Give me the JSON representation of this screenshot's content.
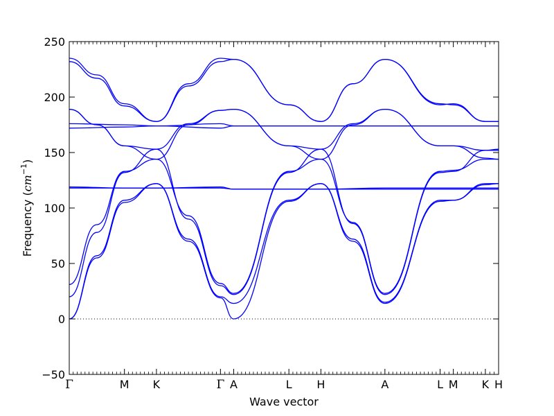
{
  "chart_data": {
    "type": "line",
    "title": "",
    "xlabel": "Wave vector",
    "ylabel": "Frequency",
    "ylabel_unit_text": "cm",
    "ylabel_unit_exp": "−1",
    "ylim": [
      -50,
      250
    ],
    "yticks": [
      -50,
      0,
      50,
      100,
      150,
      200,
      250
    ],
    "grid": false,
    "zero_line": {
      "y": 0,
      "style": "dotted"
    },
    "line_color": "#0000ff",
    "x_segment_lengths": [
      0.5,
      0.29,
      0.58,
      0.12,
      0.5,
      0.29,
      0.58,
      0.5,
      0.12,
      0.29,
      0.12
    ],
    "high_symmetry_points": [
      "Γ",
      "M",
      "K",
      "Γ",
      "A",
      "L",
      "H",
      "A",
      "L",
      "M",
      "K",
      "H"
    ],
    "series": [
      {
        "values": [
          [
            0,
            0
          ],
          [
            0.25,
            55
          ],
          [
            0.5,
            105
          ],
          [
            0.79,
            122
          ],
          [
            1.08,
            70
          ],
          [
            1.37,
            19
          ],
          [
            1.49,
            0
          ],
          [
            1.99,
            106
          ],
          [
            2.28,
            122
          ],
          [
            2.57,
            70
          ],
          [
            2.86,
            14
          ],
          [
            3.36,
            106
          ],
          [
            3.48,
            107
          ],
          [
            3.77,
            121
          ],
          [
            3.89,
            122
          ]
        ]
      },
      {
        "values": [
          [
            0,
            0
          ],
          [
            0.25,
            57
          ],
          [
            0.5,
            107
          ],
          [
            0.79,
            122
          ],
          [
            1.08,
            72
          ],
          [
            1.37,
            20
          ],
          [
            1.49,
            14
          ],
          [
            1.99,
            107
          ],
          [
            2.28,
            122
          ],
          [
            2.57,
            72
          ],
          [
            2.86,
            15
          ],
          [
            3.36,
            107
          ],
          [
            3.48,
            107
          ],
          [
            3.77,
            122
          ],
          [
            3.89,
            122
          ]
        ]
      },
      {
        "values": [
          [
            0,
            20
          ],
          [
            0.25,
            78
          ],
          [
            0.5,
            132
          ],
          [
            0.79,
            153
          ],
          [
            1.08,
            90
          ],
          [
            1.37,
            30
          ],
          [
            1.49,
            22
          ],
          [
            1.99,
            132
          ],
          [
            2.28,
            153
          ],
          [
            2.57,
            86
          ],
          [
            2.86,
            22
          ],
          [
            3.36,
            132
          ],
          [
            3.48,
            133
          ],
          [
            3.77,
            152
          ],
          [
            3.89,
            153
          ]
        ]
      },
      {
        "values": [
          [
            0,
            31
          ],
          [
            0.25,
            85
          ],
          [
            0.5,
            133
          ],
          [
            0.79,
            144
          ],
          [
            1.08,
            93
          ],
          [
            1.37,
            32
          ],
          [
            1.49,
            23
          ],
          [
            1.99,
            133
          ],
          [
            2.28,
            144
          ],
          [
            2.57,
            87
          ],
          [
            2.86,
            23
          ],
          [
            3.36,
            133
          ],
          [
            3.48,
            134
          ],
          [
            3.77,
            144
          ],
          [
            3.89,
            144
          ]
        ]
      },
      {
        "values": [
          [
            0,
            118
          ],
          [
            0.5,
            118
          ],
          [
            0.79,
            118
          ],
          [
            1.37,
            118
          ],
          [
            1.49,
            117
          ],
          [
            1.99,
            117
          ],
          [
            2.28,
            117
          ],
          [
            2.86,
            117
          ],
          [
            3.36,
            117
          ],
          [
            3.48,
            117
          ],
          [
            3.77,
            117
          ],
          [
            3.89,
            117
          ]
        ]
      },
      {
        "values": [
          [
            0,
            119
          ],
          [
            0.5,
            118
          ],
          [
            0.79,
            118
          ],
          [
            1.37,
            119
          ],
          [
            1.49,
            117
          ],
          [
            1.99,
            117
          ],
          [
            2.28,
            117
          ],
          [
            2.86,
            118
          ],
          [
            3.36,
            118
          ],
          [
            3.48,
            118
          ],
          [
            3.77,
            118
          ],
          [
            3.89,
            118
          ]
        ]
      },
      {
        "values": [
          [
            0,
            189
          ],
          [
            0.25,
            175
          ],
          [
            0.5,
            156
          ],
          [
            0.79,
            144
          ],
          [
            1.08,
            175
          ],
          [
            1.37,
            188
          ],
          [
            1.49,
            189
          ],
          [
            1.99,
            156
          ],
          [
            2.28,
            144
          ],
          [
            2.57,
            175
          ],
          [
            2.86,
            189
          ],
          [
            3.36,
            156
          ],
          [
            3.48,
            156
          ],
          [
            3.77,
            145
          ],
          [
            3.89,
            144
          ]
        ]
      },
      {
        "values": [
          [
            0,
            189
          ],
          [
            0.25,
            175
          ],
          [
            0.5,
            156
          ],
          [
            0.79,
            153
          ],
          [
            1.08,
            176
          ],
          [
            1.37,
            188
          ],
          [
            1.49,
            189
          ],
          [
            1.99,
            156
          ],
          [
            2.28,
            153
          ],
          [
            2.57,
            176
          ],
          [
            2.86,
            189
          ],
          [
            3.36,
            156
          ],
          [
            3.48,
            156
          ],
          [
            3.77,
            152
          ],
          [
            3.89,
            152
          ]
        ]
      },
      {
        "values": [
          [
            0,
            176
          ],
          [
            0.5,
            175
          ],
          [
            0.79,
            174
          ],
          [
            1.37,
            176
          ],
          [
            1.49,
            174
          ],
          [
            1.99,
            174
          ],
          [
            2.28,
            174
          ],
          [
            2.86,
            174
          ],
          [
            3.36,
            174
          ],
          [
            3.48,
            174
          ],
          [
            3.77,
            174
          ],
          [
            3.89,
            174
          ]
        ]
      },
      {
        "values": [
          [
            0,
            172
          ],
          [
            0.5,
            173
          ],
          [
            0.79,
            174
          ],
          [
            1.37,
            172
          ],
          [
            1.49,
            174
          ],
          [
            1.99,
            174
          ],
          [
            2.28,
            174
          ],
          [
            2.86,
            174
          ],
          [
            3.36,
            174
          ],
          [
            3.48,
            174
          ],
          [
            3.77,
            174
          ],
          [
            3.89,
            174
          ]
        ]
      },
      {
        "values": [
          [
            0,
            235
          ],
          [
            0.25,
            220
          ],
          [
            0.5,
            194
          ],
          [
            0.79,
            178
          ],
          [
            1.08,
            212
          ],
          [
            1.37,
            235
          ],
          [
            1.49,
            234
          ],
          [
            1.99,
            193
          ],
          [
            2.28,
            178
          ],
          [
            2.57,
            212
          ],
          [
            2.86,
            234
          ],
          [
            3.36,
            194
          ],
          [
            3.48,
            193
          ],
          [
            3.77,
            178
          ],
          [
            3.89,
            178
          ]
        ]
      },
      {
        "values": [
          [
            0,
            232
          ],
          [
            0.25,
            217
          ],
          [
            0.5,
            192
          ],
          [
            0.79,
            178
          ],
          [
            1.08,
            210
          ],
          [
            1.37,
            232
          ],
          [
            1.49,
            234
          ],
          [
            1.99,
            193
          ],
          [
            2.28,
            178
          ],
          [
            2.57,
            212
          ],
          [
            2.86,
            234
          ],
          [
            3.36,
            193
          ],
          [
            3.48,
            194
          ],
          [
            3.77,
            178
          ],
          [
            3.89,
            178
          ]
        ]
      }
    ]
  }
}
